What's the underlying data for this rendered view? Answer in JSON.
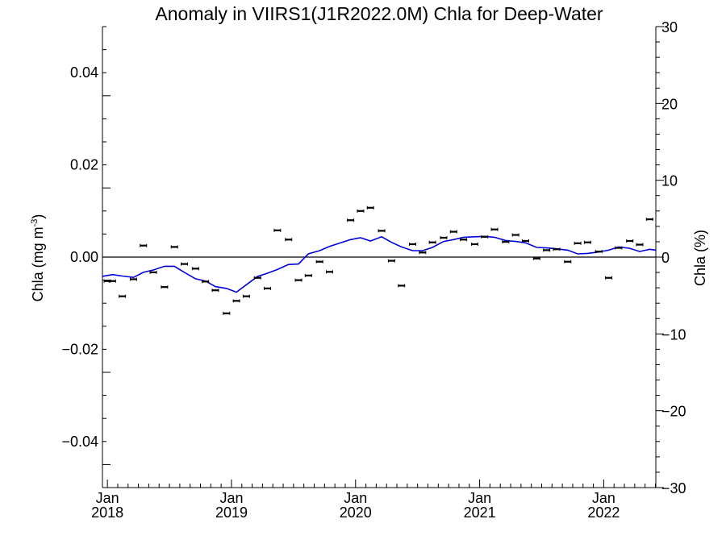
{
  "chart_data": {
    "type": "scatter",
    "title": "Anomaly in VIIRS1(J1R2022.0M) Chla for Deep-Water",
    "ylabel": {
      "main": "Chla (mg m",
      "sup": "-3",
      "close": ")"
    },
    "ylabel_right": "Chla (%)",
    "ylim": [
      -0.05,
      0.05
    ],
    "ylim_right": [
      -30,
      30
    ],
    "yticks": [
      -0.04,
      -0.02,
      0.0,
      0.02,
      0.04
    ],
    "ytick_labels": [
      "−0.04",
      "−0.02",
      "0.00",
      "0.02",
      "0.04"
    ],
    "yticks_right": [
      -30,
      -20,
      -10,
      0,
      10,
      20,
      30
    ],
    "ytick_labels_right": [
      "−30",
      "−20",
      "−10",
      "0",
      "10",
      "20",
      "30"
    ],
    "xlim": [
      2017.96,
      2022.42
    ],
    "xticks": [
      {
        "x": 2018.0,
        "month": "Jan",
        "year": "2018"
      },
      {
        "x": 2019.0,
        "month": "Jan",
        "year": "2019"
      },
      {
        "x": 2020.0,
        "month": "Jan",
        "year": "2020"
      },
      {
        "x": 2021.0,
        "month": "Jan",
        "year": "2021"
      },
      {
        "x": 2022.0,
        "month": "Jan",
        "year": "2022"
      }
    ],
    "zero_line": 0.0,
    "series": [
      {
        "kind": "points-with-errorbars",
        "color": "#000000",
        "points": [
          {
            "x": 2018.0,
            "y": -0.0052
          },
          {
            "x": 2018.04,
            "y": -0.0052
          },
          {
            "x": 2018.12,
            "y": -0.0085
          },
          {
            "x": 2018.21,
            "y": -0.0048
          },
          {
            "x": 2018.29,
            "y": 0.0025
          },
          {
            "x": 2018.37,
            "y": -0.0033
          },
          {
            "x": 2018.46,
            "y": -0.0065
          },
          {
            "x": 2018.54,
            "y": 0.0022
          },
          {
            "x": 2018.62,
            "y": -0.0015
          },
          {
            "x": 2018.71,
            "y": -0.0025
          },
          {
            "x": 2018.79,
            "y": -0.0053
          },
          {
            "x": 2018.87,
            "y": -0.0072
          },
          {
            "x": 2018.96,
            "y": -0.0122
          },
          {
            "x": 2019.04,
            "y": -0.0095
          },
          {
            "x": 2019.12,
            "y": -0.0085
          },
          {
            "x": 2019.21,
            "y": -0.0045
          },
          {
            "x": 2019.29,
            "y": -0.0068
          },
          {
            "x": 2019.37,
            "y": 0.0058
          },
          {
            "x": 2019.46,
            "y": 0.0038
          },
          {
            "x": 2019.54,
            "y": -0.005
          },
          {
            "x": 2019.62,
            "y": -0.004
          },
          {
            "x": 2019.71,
            "y": -0.001
          },
          {
            "x": 2019.79,
            "y": -0.0032
          },
          {
            "x": 2019.96,
            "y": 0.008
          },
          {
            "x": 2020.04,
            "y": 0.01
          },
          {
            "x": 2020.12,
            "y": 0.0107
          },
          {
            "x": 2020.21,
            "y": 0.0057
          },
          {
            "x": 2020.29,
            "y": -0.0008
          },
          {
            "x": 2020.37,
            "y": -0.0062
          },
          {
            "x": 2020.46,
            "y": 0.0028
          },
          {
            "x": 2020.54,
            "y": 0.001
          },
          {
            "x": 2020.62,
            "y": 0.0032
          },
          {
            "x": 2020.71,
            "y": 0.0042
          },
          {
            "x": 2020.79,
            "y": 0.0055
          },
          {
            "x": 2020.87,
            "y": 0.0038
          },
          {
            "x": 2020.96,
            "y": 0.0028
          },
          {
            "x": 2021.04,
            "y": 0.0044
          },
          {
            "x": 2021.12,
            "y": 0.006
          },
          {
            "x": 2021.21,
            "y": 0.0033
          },
          {
            "x": 2021.29,
            "y": 0.0048
          },
          {
            "x": 2021.37,
            "y": 0.0035
          },
          {
            "x": 2021.46,
            "y": -0.0003
          },
          {
            "x": 2021.54,
            "y": 0.0015
          },
          {
            "x": 2021.62,
            "y": 0.0017
          },
          {
            "x": 2021.71,
            "y": -0.001
          },
          {
            "x": 2021.79,
            "y": 0.003
          },
          {
            "x": 2021.87,
            "y": 0.0032
          },
          {
            "x": 2021.96,
            "y": 0.0012
          },
          {
            "x": 2022.04,
            "y": -0.0045
          },
          {
            "x": 2022.12,
            "y": 0.002
          },
          {
            "x": 2022.21,
            "y": 0.0035
          },
          {
            "x": 2022.29,
            "y": 0.0027
          },
          {
            "x": 2022.37,
            "y": 0.0082
          }
        ]
      },
      {
        "kind": "line",
        "color": "#0000dd",
        "points": [
          {
            "x": 2017.96,
            "y": -0.0042
          },
          {
            "x": 2018.04,
            "y": -0.0038
          },
          {
            "x": 2018.12,
            "y": -0.0041
          },
          {
            "x": 2018.21,
            "y": -0.0044
          },
          {
            "x": 2018.29,
            "y": -0.0033
          },
          {
            "x": 2018.37,
            "y": -0.0028
          },
          {
            "x": 2018.46,
            "y": -0.002
          },
          {
            "x": 2018.54,
            "y": -0.002
          },
          {
            "x": 2018.62,
            "y": -0.0033
          },
          {
            "x": 2018.71,
            "y": -0.0047
          },
          {
            "x": 2018.79,
            "y": -0.0052
          },
          {
            "x": 2018.87,
            "y": -0.0064
          },
          {
            "x": 2018.96,
            "y": -0.0068
          },
          {
            "x": 2019.04,
            "y": -0.0076
          },
          {
            "x": 2019.12,
            "y": -0.006
          },
          {
            "x": 2019.21,
            "y": -0.0042
          },
          {
            "x": 2019.29,
            "y": -0.0035
          },
          {
            "x": 2019.37,
            "y": -0.0027
          },
          {
            "x": 2019.46,
            "y": -0.0016
          },
          {
            "x": 2019.54,
            "y": -0.0015
          },
          {
            "x": 2019.62,
            "y": 0.0007
          },
          {
            "x": 2019.71,
            "y": 0.0014
          },
          {
            "x": 2019.79,
            "y": 0.0023
          },
          {
            "x": 2019.87,
            "y": 0.003
          },
          {
            "x": 2019.96,
            "y": 0.0038
          },
          {
            "x": 2020.04,
            "y": 0.0042
          },
          {
            "x": 2020.12,
            "y": 0.0035
          },
          {
            "x": 2020.21,
            "y": 0.0044
          },
          {
            "x": 2020.29,
            "y": 0.0032
          },
          {
            "x": 2020.37,
            "y": 0.0022
          },
          {
            "x": 2020.46,
            "y": 0.0014
          },
          {
            "x": 2020.54,
            "y": 0.0014
          },
          {
            "x": 2020.62,
            "y": 0.0021
          },
          {
            "x": 2020.71,
            "y": 0.0034
          },
          {
            "x": 2020.79,
            "y": 0.0038
          },
          {
            "x": 2020.87,
            "y": 0.0043
          },
          {
            "x": 2020.96,
            "y": 0.0044
          },
          {
            "x": 2021.04,
            "y": 0.0045
          },
          {
            "x": 2021.12,
            "y": 0.0043
          },
          {
            "x": 2021.21,
            "y": 0.0036
          },
          {
            "x": 2021.29,
            "y": 0.0034
          },
          {
            "x": 2021.37,
            "y": 0.0031
          },
          {
            "x": 2021.46,
            "y": 0.0021
          },
          {
            "x": 2021.54,
            "y": 0.002
          },
          {
            "x": 2021.62,
            "y": 0.0018
          },
          {
            "x": 2021.71,
            "y": 0.0015
          },
          {
            "x": 2021.79,
            "y": 0.0007
          },
          {
            "x": 2021.87,
            "y": 0.0008
          },
          {
            "x": 2021.96,
            "y": 0.0011
          },
          {
            "x": 2022.04,
            "y": 0.0015
          },
          {
            "x": 2022.12,
            "y": 0.0022
          },
          {
            "x": 2022.21,
            "y": 0.0019
          },
          {
            "x": 2022.29,
            "y": 0.0012
          },
          {
            "x": 2022.37,
            "y": 0.0017
          },
          {
            "x": 2022.42,
            "y": 0.0015
          }
        ]
      }
    ]
  }
}
